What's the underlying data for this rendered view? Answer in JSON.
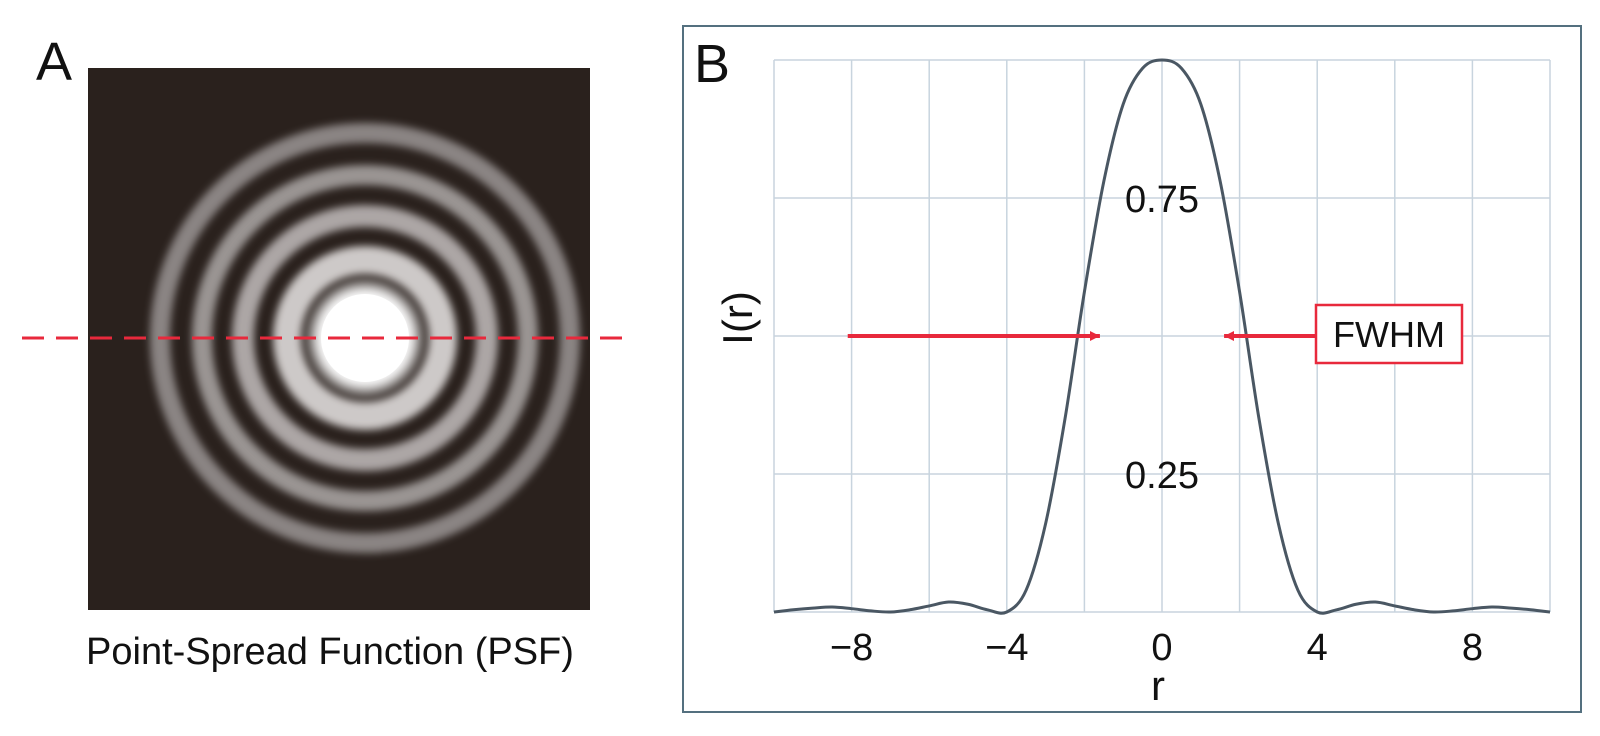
{
  "panel_a": {
    "letter": "A",
    "caption": "Point-Spread Function (PSF)",
    "colors": {
      "background": "#2a211d",
      "ring": "#e6e6e6",
      "cut_line": "#e8293c"
    }
  },
  "panel_b": {
    "letter": "B",
    "fwhm_label": "FWHM",
    "colors": {
      "curve": "#4a5763",
      "grid": "#c8d4de",
      "frame": "#54707f",
      "arrow": "#e8293c"
    }
  },
  "chart_data": {
    "type": "line",
    "title": "",
    "xlabel": "r",
    "ylabel": "I(r)",
    "xlim": [
      -10,
      10
    ],
    "ylim": [
      0,
      1
    ],
    "x_ticks": [
      -8,
      -4,
      0,
      4,
      8
    ],
    "x_tick_labels": [
      "−8",
      "−4",
      "0",
      "4",
      "8"
    ],
    "y_annotations": [
      {
        "value": 0.75,
        "label": "0.75"
      },
      {
        "value": 0.25,
        "label": "0.25"
      }
    ],
    "grid": true,
    "series": [
      {
        "x": [
          -10,
          -9.5,
          -9,
          -8.5,
          -8,
          -7.5,
          -7,
          -6.5,
          -6,
          -5.5,
          -5,
          -4.5,
          -4,
          -3.5,
          -3,
          -2.5,
          -2,
          -1.5,
          -1,
          -0.5,
          0,
          0.5,
          1,
          1.5,
          2,
          2.5,
          3,
          3.5,
          4,
          4.5,
          5,
          5.5,
          6,
          6.5,
          7,
          7.5,
          8,
          8.5,
          9,
          9.5,
          10
        ],
        "y": [
          0.0,
          0.004,
          0.007,
          0.009,
          0.006,
          0.002,
          0.0,
          0.004,
          0.011,
          0.018,
          0.014,
          0.004,
          0.0,
          0.04,
          0.16,
          0.35,
          0.58,
          0.78,
          0.92,
          0.985,
          1.0,
          0.985,
          0.92,
          0.78,
          0.58,
          0.35,
          0.16,
          0.04,
          0.0,
          0.004,
          0.014,
          0.018,
          0.011,
          0.004,
          0.0,
          0.002,
          0.006,
          0.009,
          0.007,
          0.004,
          0.0
        ]
      }
    ]
  }
}
